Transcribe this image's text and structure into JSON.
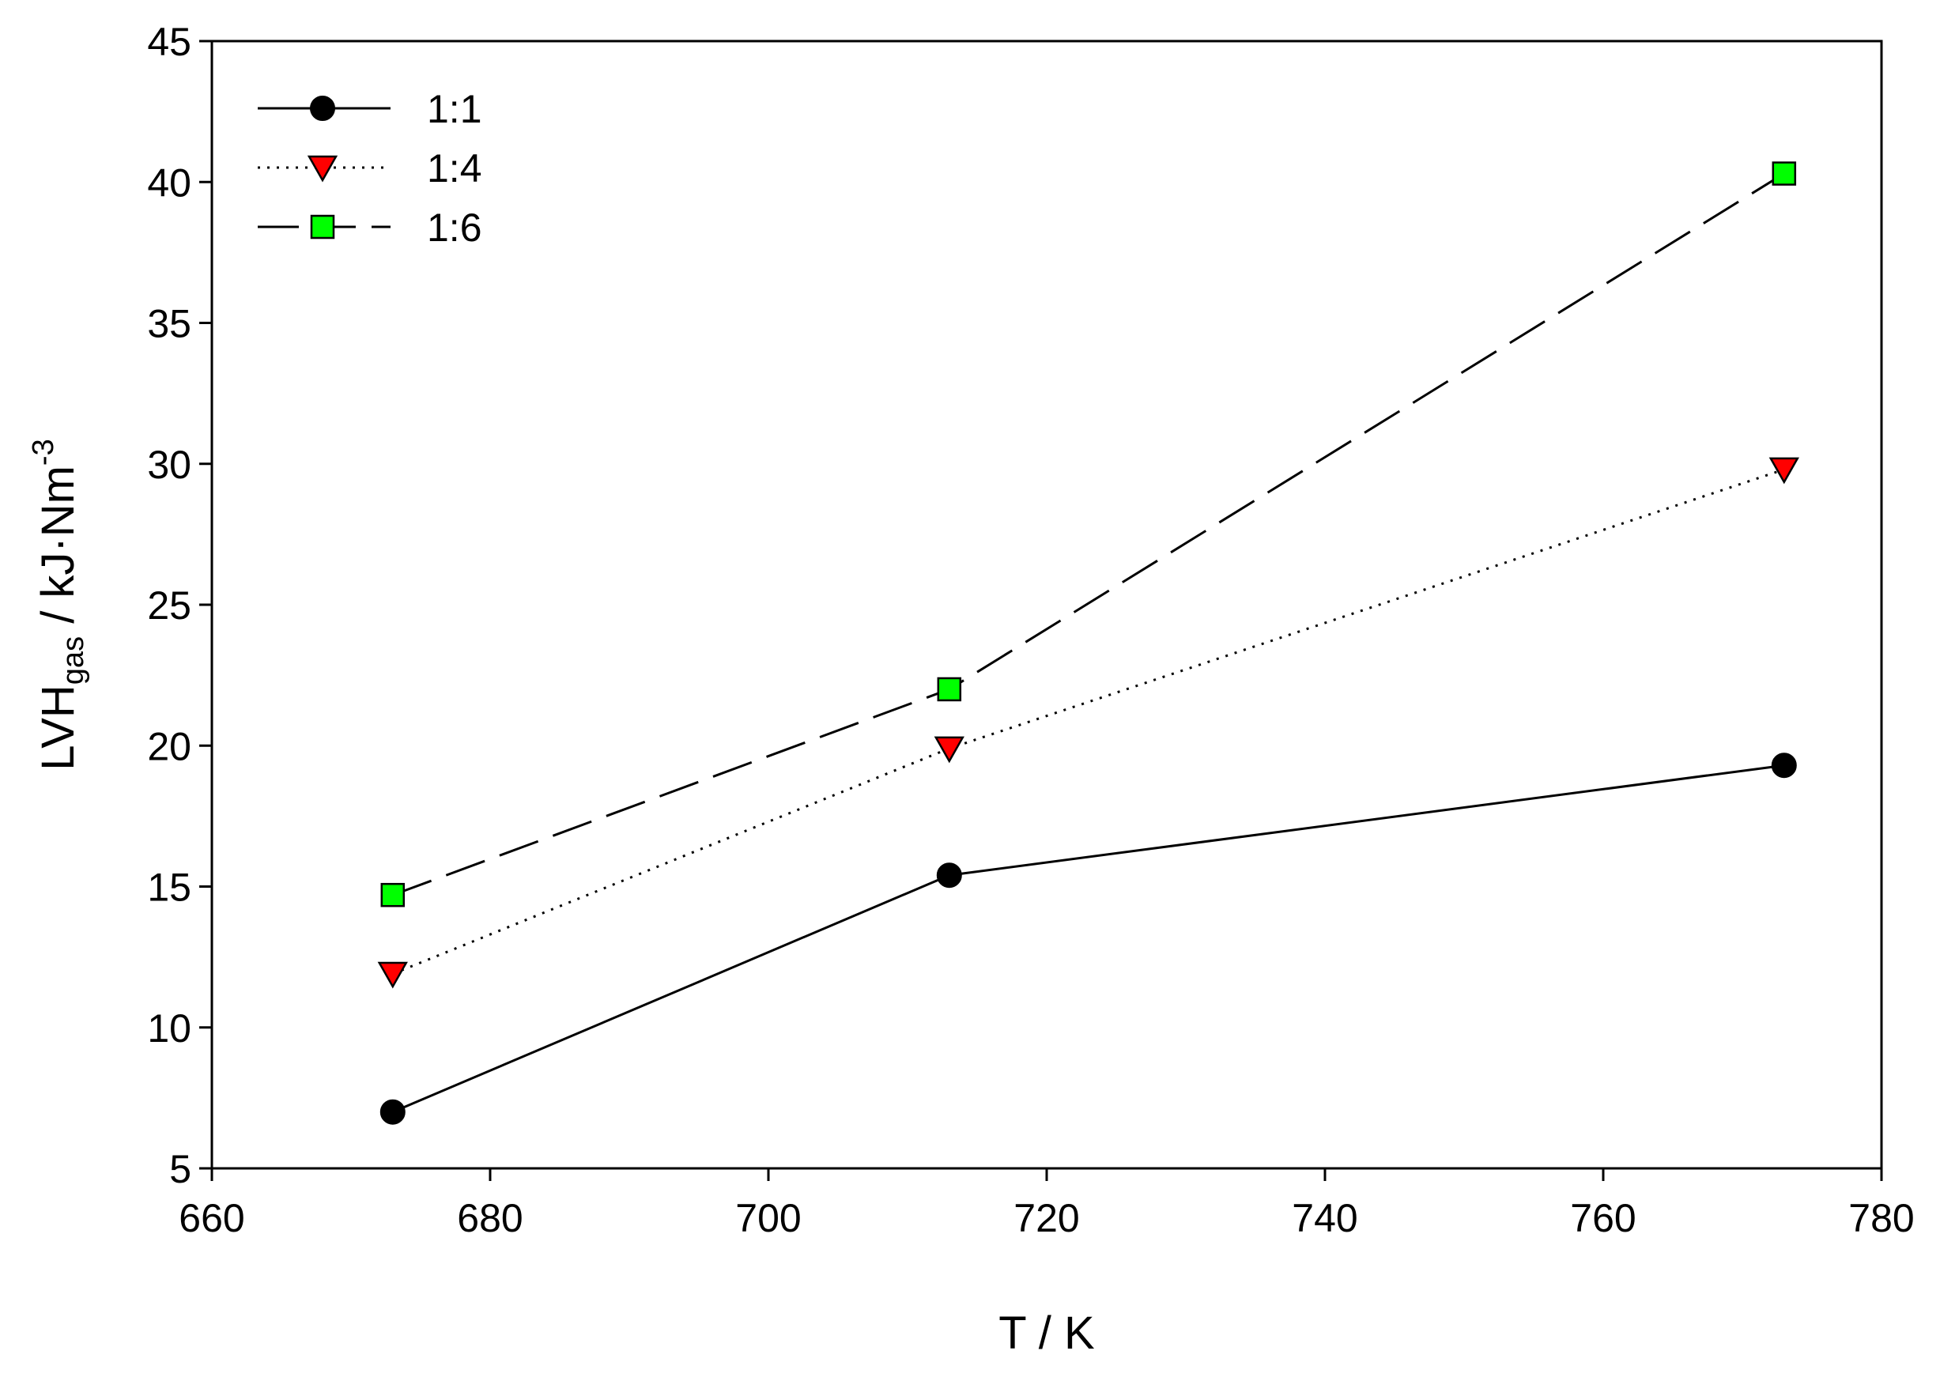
{
  "chart_data": {
    "type": "line",
    "title": "",
    "xlabel": "T / K",
    "ylabel": {
      "base": "LVH",
      "subscript": "gas",
      "unit_text": " / kJ·Nm",
      "superscript": "-3"
    },
    "xlim": [
      660,
      780
    ],
    "ylim": [
      5,
      45
    ],
    "xticks": [
      660,
      680,
      700,
      720,
      740,
      760,
      780
    ],
    "yticks": [
      5,
      10,
      15,
      20,
      25,
      30,
      35,
      40,
      45
    ],
    "grid": false,
    "legend_position": "top-left",
    "x": [
      673,
      713,
      773
    ],
    "series": [
      {
        "name": "1:1",
        "values": [
          7.0,
          15.4,
          19.3
        ],
        "marker": "circle",
        "line_style": "solid",
        "color": "#000000"
      },
      {
        "name": "1:4",
        "values": [
          11.9,
          19.9,
          29.8
        ],
        "marker": "triangle-down",
        "line_style": "dotted",
        "color": "#ff0000"
      },
      {
        "name": "1:6",
        "values": [
          14.7,
          22.0,
          40.3
        ],
        "marker": "square",
        "line_style": "dashed",
        "color": "#00ff00"
      }
    ]
  }
}
